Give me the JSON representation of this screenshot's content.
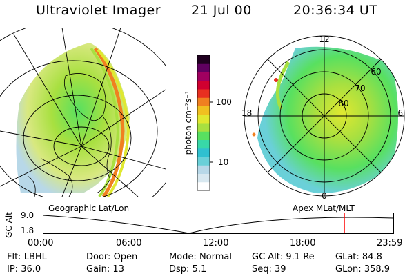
{
  "header": {
    "instrument": "Ultraviolet Imager",
    "date": "21 Jul 00",
    "time": "20:36:34 UT"
  },
  "colorbar": {
    "unit_label": "photon cm⁻²s⁻¹",
    "ticks": [
      "100",
      "10"
    ],
    "colors": [
      "#ffffff",
      "#d8e8f0",
      "#b8d8e8",
      "#6ad0d8",
      "#30c0d0",
      "#38d8a8",
      "#58e060",
      "#a8e040",
      "#e0e830",
      "#f0c020",
      "#f08020",
      "#e83020",
      "#d00030",
      "#a00060",
      "#600060",
      "#200020"
    ]
  },
  "left_map": {
    "label": "Geographic Lat/Lon"
  },
  "right_map": {
    "label": "Apex MLat/MLT",
    "mlt_labels": [
      "12",
      "18",
      "6",
      "0"
    ],
    "lat_labels": [
      "60",
      "70",
      "80"
    ]
  },
  "timeline": {
    "y_label": "GC Alt",
    "y_ticks": [
      "9.0",
      "1.8"
    ],
    "x_ticks": [
      "00:00",
      "06:00",
      "12:00",
      "18:00",
      "23:59"
    ],
    "marker_color": "#ff0000"
  },
  "info": {
    "row1": [
      {
        "label": "Flt:",
        "value": "LBHL"
      },
      {
        "label": "Door:",
        "value": "Open"
      },
      {
        "label": "Mode:",
        "value": "Normal"
      },
      {
        "label": "GC Alt:",
        "value": "9.1 Re"
      },
      {
        "label": "GLat:",
        "value": "84.8"
      }
    ],
    "row2": [
      {
        "label": "IP:",
        "value": "36.0"
      },
      {
        "label": "Gain:",
        "value": "13"
      },
      {
        "label": "Dsp:",
        "value": "5.1"
      },
      {
        "label": "Seq:",
        "value": "39"
      },
      {
        "label": "GLon:",
        "value": "358.9"
      }
    ]
  }
}
